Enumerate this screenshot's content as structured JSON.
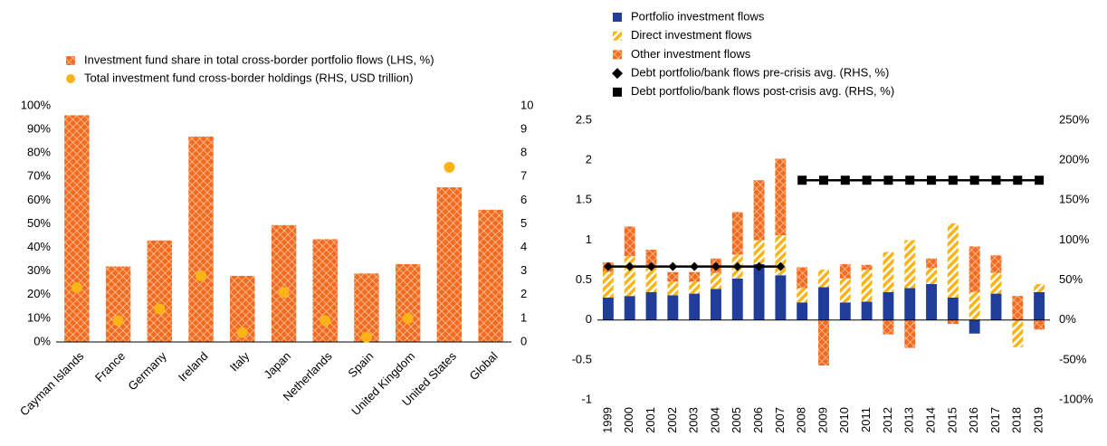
{
  "chart_data": [
    {
      "type": "bar",
      "categories": [
        "Cayman Islands",
        "France",
        "Germany",
        "Ireland",
        "Italy",
        "Japan",
        "Netherlands",
        "Spain",
        "United Kingdom",
        "United States",
        "Global"
      ],
      "series": [
        {
          "name": "Investment fund share in total cross-border portfolio flows (LHS, %)",
          "type": "bar",
          "color": "#f26b21",
          "pattern": "crosshatch",
          "values": [
            96,
            32,
            43,
            87,
            28,
            49.5,
            43.5,
            29,
            33,
            65.5,
            56
          ]
        },
        {
          "name": "Total investment fund cross-border holdings (RHS, USD trillion)",
          "type": "scatter",
          "axis": "y2",
          "color": "#fbb316",
          "values": [
            2.3,
            0.9,
            1.4,
            2.8,
            0.4,
            2.1,
            0.9,
            0.2,
            1.0,
            7.4,
            null
          ]
        }
      ],
      "ylim": [
        0,
        100
      ],
      "yticks": [
        {
          "value": 0,
          "label": "0%"
        },
        {
          "value": 10,
          "label": "10%"
        },
        {
          "value": 20,
          "label": "20%"
        },
        {
          "value": 30,
          "label": "30%"
        },
        {
          "value": 40,
          "label": "40%"
        },
        {
          "value": 50,
          "label": "50%"
        },
        {
          "value": 60,
          "label": "60%"
        },
        {
          "value": 70,
          "label": "70%"
        },
        {
          "value": 80,
          "label": "80%"
        },
        {
          "value": 90,
          "label": "90%"
        },
        {
          "value": 100,
          "label": "100%"
        }
      ],
      "y2lim": [
        0,
        10
      ],
      "y2ticks": [
        0,
        1,
        2,
        3,
        4,
        5,
        6,
        7,
        8,
        9,
        10
      ]
    },
    {
      "type": "bar",
      "categories": [
        "1999",
        "2000",
        "2001",
        "2002",
        "2003",
        "2004",
        "2005",
        "2006",
        "2007",
        "2008",
        "2009",
        "2010",
        "2011",
        "2012",
        "2013",
        "2014",
        "2015",
        "2016",
        "2017",
        "2018",
        "2019"
      ],
      "series": [
        {
          "name": "Portfolio investment flows",
          "type": "bar",
          "color": "#1f3d99",
          "pattern": "solid",
          "values": [
            0.28,
            0.3,
            0.35,
            0.31,
            0.33,
            0.39,
            0.52,
            0.7,
            0.56,
            0.22,
            0.41,
            0.22,
            0.23,
            0.35,
            0.4,
            0.45,
            0.28,
            -0.17,
            0.33,
            0,
            0.35
          ]
        },
        {
          "name": "Direct investment flows",
          "type": "bar",
          "color": "#fbb316",
          "pattern": "stripes",
          "values": [
            0.32,
            0.5,
            0.3,
            0.17,
            0.15,
            0.2,
            0.3,
            0.3,
            0.5,
            0.18,
            0.22,
            0.3,
            0.4,
            0.5,
            0.6,
            0.2,
            0.93,
            0.35,
            0.26,
            -0.34,
            0.1
          ]
        },
        {
          "name": "Other investment flows",
          "type": "bar",
          "color": "#f26b21",
          "pattern": "crosshatch",
          "values": [
            0.12,
            0.37,
            0.23,
            0.12,
            0.12,
            0.18,
            0.53,
            0.75,
            0.96,
            0.26,
            -0.57,
            0.18,
            0.06,
            -0.18,
            -0.35,
            0.12,
            -0.05,
            0.57,
            0.22,
            0.3,
            -0.12
          ]
        },
        {
          "name": "Debt portfolio/bank flows pre-crisis avg. (RHS, %)",
          "type": "line",
          "axis": "y2",
          "color": "#000000",
          "marker": "diamond",
          "values": [
            67,
            67,
            67,
            67,
            67,
            67,
            67,
            67,
            67,
            null,
            null,
            null,
            null,
            null,
            null,
            null,
            null,
            null,
            null,
            null,
            null
          ]
        },
        {
          "name": "Debt portfolio/bank flows post-crisis avg. (RHS, %)",
          "type": "line",
          "axis": "y2",
          "color": "#000000",
          "marker": "square",
          "values": [
            null,
            null,
            null,
            null,
            null,
            null,
            null,
            null,
            null,
            175,
            175,
            175,
            175,
            175,
            175,
            175,
            175,
            175,
            175,
            175,
            175
          ]
        }
      ],
      "ylim": [
        -1,
        2.5
      ],
      "yticks": [
        -1,
        -0.5,
        0,
        0.5,
        1,
        1.5,
        2,
        2.5
      ],
      "y2lim": [
        -100,
        250
      ],
      "y2ticks": [
        {
          "value": -100,
          "label": "-100%"
        },
        {
          "value": -50,
          "label": "-50%"
        },
        {
          "value": 0,
          "label": "0%"
        },
        {
          "value": 50,
          "label": "50%"
        },
        {
          "value": 100,
          "label": "100%"
        },
        {
          "value": 150,
          "label": "150%"
        },
        {
          "value": 200,
          "label": "200%"
        },
        {
          "value": 250,
          "label": "250%"
        }
      ]
    }
  ]
}
